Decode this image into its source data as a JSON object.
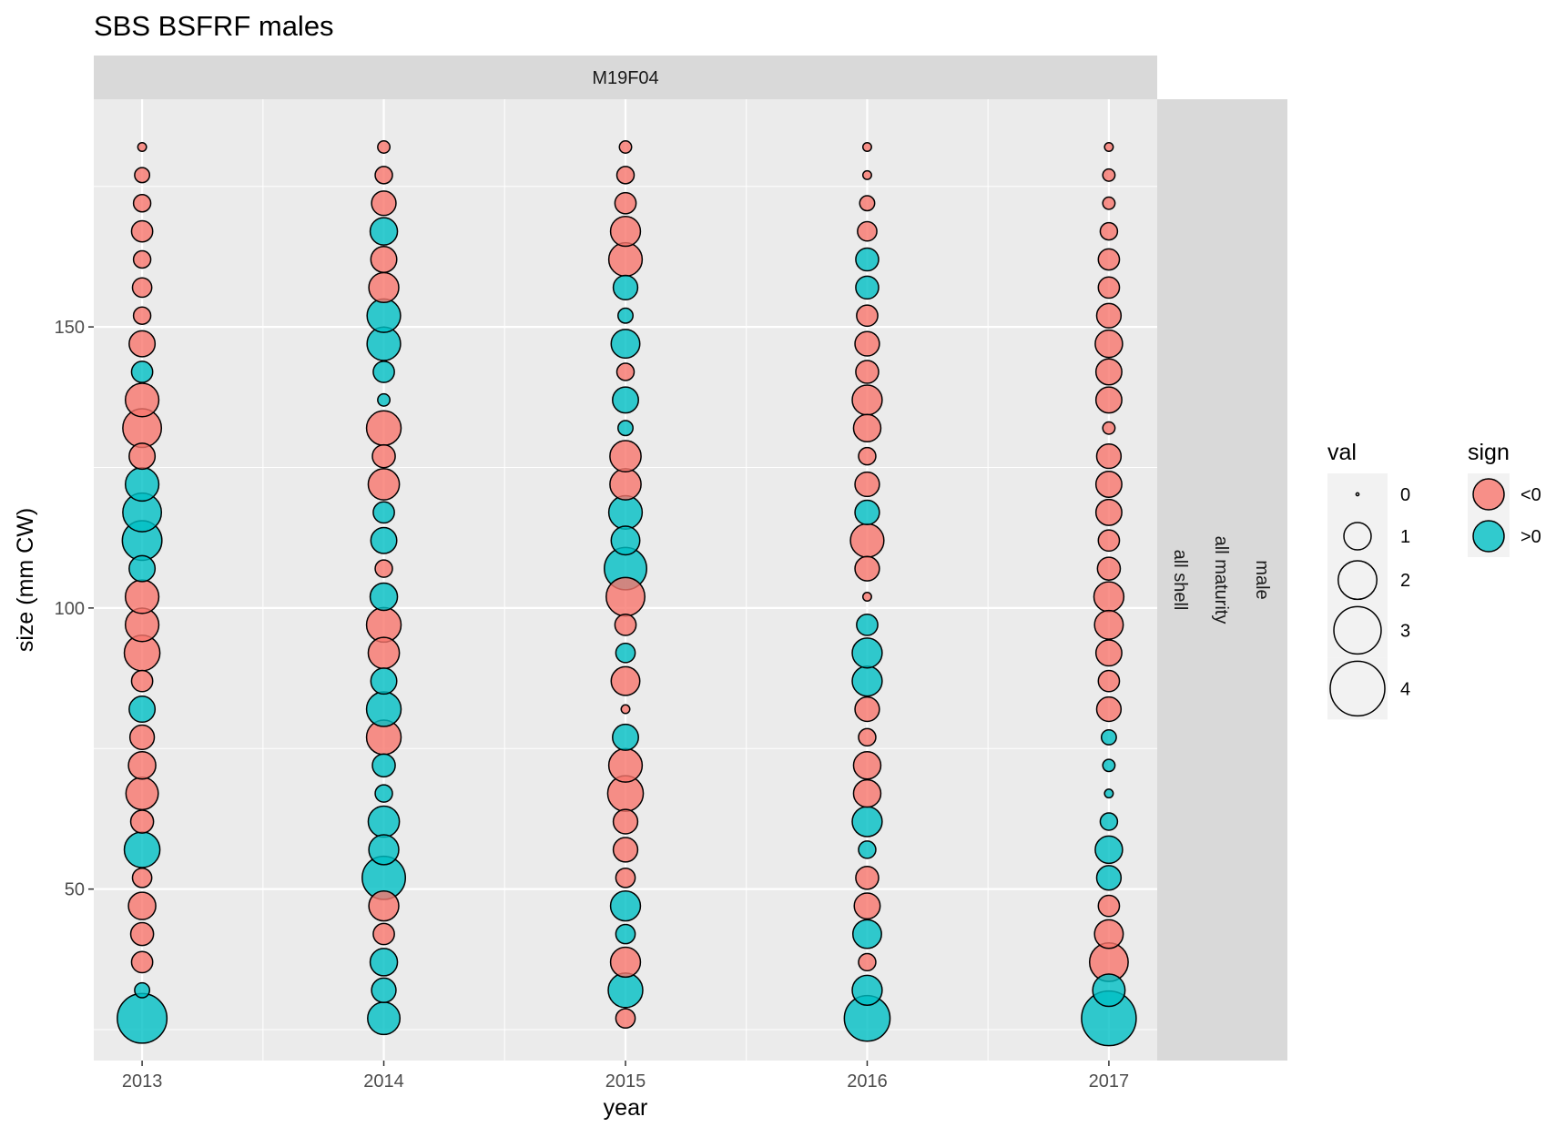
{
  "title": "SBS BSFRF males",
  "facet_label": "M19F04",
  "row_strip_labels": [
    "male",
    "all maturity",
    "all shell"
  ],
  "colors": {
    "negative": "#F8766D",
    "positive": "#00BFC4",
    "panel": "#EBEBEB",
    "strip": "#D9D9D9",
    "grid": "#FFFFFF",
    "outline": "#000000"
  },
  "chart_data": {
    "type": "scatter",
    "title": "SBS BSFRF males",
    "xlabel": "year",
    "ylabel": "size (mm CW)",
    "x_ticks": [
      "2013",
      "2014",
      "2015",
      "2016",
      "2017"
    ],
    "y_ticks": [
      50,
      100,
      150
    ],
    "ylim": [
      19.5,
      190.5
    ],
    "grid": true,
    "legend_position": "right",
    "legends": {
      "size": {
        "title": "val",
        "levels": [
          0,
          1,
          2,
          3,
          4
        ]
      },
      "fill": {
        "title": "sign",
        "labels": [
          "<0",
          ">0"
        ]
      }
    },
    "sizes": [
      27,
      32,
      37,
      42,
      47,
      52,
      57,
      62,
      67,
      72,
      77,
      82,
      87,
      92,
      97,
      102,
      107,
      112,
      117,
      122,
      127,
      132,
      137,
      142,
      147,
      152,
      157,
      162,
      167,
      172,
      177,
      182
    ],
    "series": [
      {
        "year": "2013",
        "val": [
          3.3,
          0.3,
          0.6,
          0.7,
          1.0,
          0.5,
          1.7,
          0.7,
          1.4,
          1.0,
          0.8,
          0.9,
          0.6,
          1.7,
          1.5,
          1.5,
          0.9,
          2.1,
          2.0,
          1.5,
          0.9,
          2.0,
          1.5,
          0.6,
          0.9,
          0.4,
          0.5,
          0.4,
          0.6,
          0.4,
          0.3,
          0.1
        ],
        "sign": [
          ">0",
          ">0",
          "<0",
          "<0",
          "<0",
          "<0",
          ">0",
          "<0",
          "<0",
          "<0",
          "<0",
          ">0",
          "<0",
          "<0",
          "<0",
          "<0",
          ">0",
          ">0",
          ">0",
          ">0",
          "<0",
          "<0",
          "<0",
          ">0",
          "<0",
          "<0",
          "<0",
          "<0",
          "<0",
          "<0",
          "<0",
          "<0"
        ]
      },
      {
        "year": "2014",
        "val": [
          1.4,
          0.8,
          1.0,
          0.6,
          1.2,
          2.5,
          1.2,
          1.3,
          0.4,
          0.7,
          1.6,
          1.6,
          0.9,
          1.3,
          1.6,
          1.0,
          0.4,
          0.9,
          0.6,
          1.3,
          0.7,
          1.6,
          0.2,
          0.6,
          1.5,
          1.5,
          1.2,
          0.9,
          1.0,
          0.8,
          0.4,
          0.2
        ],
        "sign": [
          ">0",
          ">0",
          ">0",
          "<0",
          "<0",
          ">0",
          ">0",
          ">0",
          ">0",
          ">0",
          "<0",
          ">0",
          ">0",
          "<0",
          "<0",
          ">0",
          "<0",
          ">0",
          ">0",
          "<0",
          "<0",
          "<0",
          ">0",
          ">0",
          ">0",
          ">0",
          "<0",
          "<0",
          ">0",
          "<0",
          "<0",
          "<0"
        ]
      },
      {
        "year": "2015",
        "val": [
          0.5,
          1.6,
          1.2,
          0.5,
          1.2,
          0.5,
          0.8,
          0.8,
          1.7,
          1.5,
          0.9,
          0.1,
          1.1,
          0.5,
          0.6,
          2.0,
          2.4,
          1.1,
          1.5,
          1.3,
          1.3,
          0.3,
          0.9,
          0.4,
          1.1,
          0.3,
          0.8,
          1.5,
          1.2,
          0.6,
          0.4,
          0.2
        ],
        "sign": [
          "<0",
          ">0",
          "<0",
          ">0",
          ">0",
          "<0",
          "<0",
          "<0",
          "<0",
          "<0",
          ">0",
          "<0",
          "<0",
          ">0",
          "<0",
          "<0",
          ">0",
          ">0",
          ">0",
          "<0",
          "<0",
          ">0",
          ">0",
          "<0",
          ">0",
          ">0",
          ">0",
          "<0",
          "<0",
          "<0",
          "<0",
          "<0"
        ]
      },
      {
        "year": "2016",
        "val": [
          2.8,
          1.2,
          0.4,
          1.1,
          0.9,
          0.7,
          0.4,
          1.2,
          1.0,
          1.0,
          0.4,
          0.8,
          1.2,
          1.2,
          0.6,
          0.1,
          0.8,
          1.5,
          0.8,
          0.8,
          0.4,
          1.0,
          1.2,
          0.7,
          0.8,
          0.6,
          0.7,
          0.7,
          0.5,
          0.3,
          0.1,
          0.1
        ],
        "sign": [
          ">0",
          ">0",
          "<0",
          ">0",
          "<0",
          "<0",
          ">0",
          ">0",
          "<0",
          "<0",
          "<0",
          "<0",
          ">0",
          ">0",
          ">0",
          "<0",
          "<0",
          "<0",
          ">0",
          "<0",
          "<0",
          "<0",
          "<0",
          "<0",
          "<0",
          "<0",
          ">0",
          ">0",
          "<0",
          "<0",
          "<0",
          "<0"
        ]
      },
      {
        "year": "2017",
        "val": [
          4.0,
          1.4,
          2.0,
          1.1,
          0.6,
          0.8,
          1.0,
          0.4,
          0.1,
          0.2,
          0.3,
          0.8,
          0.6,
          0.9,
          1.1,
          1.2,
          0.7,
          0.6,
          0.9,
          0.9,
          0.8,
          0.2,
          0.9,
          0.9,
          1.0,
          0.8,
          0.6,
          0.6,
          0.4,
          0.2,
          0.2,
          0.1
        ],
        "sign": [
          ">0",
          ">0",
          "<0",
          "<0",
          "<0",
          ">0",
          ">0",
          ">0",
          ">0",
          ">0",
          ">0",
          "<0",
          "<0",
          "<0",
          "<0",
          "<0",
          "<0",
          "<0",
          "<0",
          "<0",
          "<0",
          "<0",
          "<0",
          "<0",
          "<0",
          "<0",
          "<0",
          "<0",
          "<0",
          "<0",
          "<0",
          "<0"
        ]
      }
    ]
  }
}
